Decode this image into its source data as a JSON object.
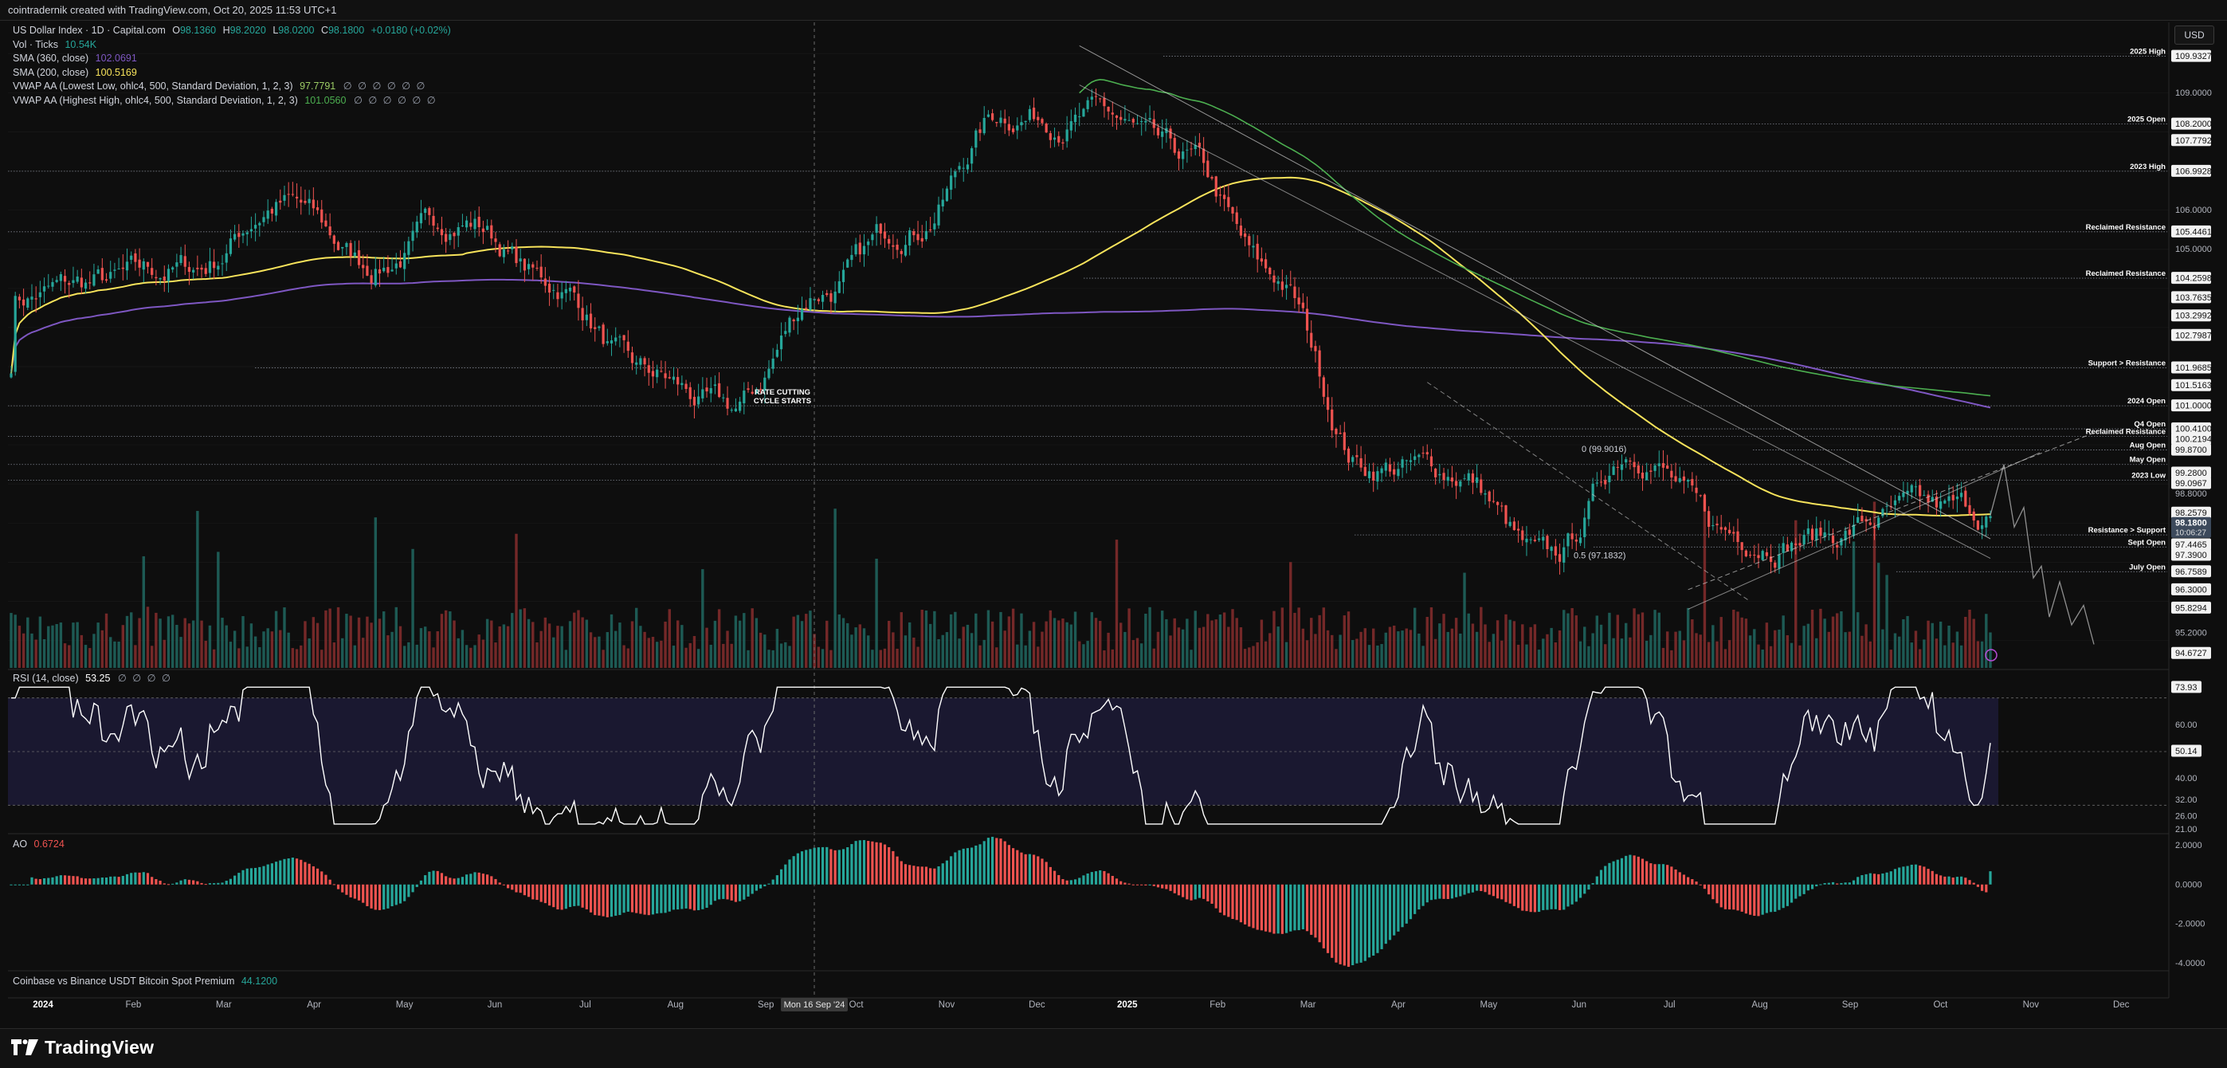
{
  "topbar": {
    "text": "cointradernik created with TradingView.com, Oct 20, 2025 11:53 UTC+1"
  },
  "legend": {
    "symbol": "US Dollar Index · 1D · Capital.com",
    "ohlc": {
      "o_label": "O",
      "o": "98.1360",
      "h_label": "H",
      "h": "98.2020",
      "l_label": "L",
      "l": "98.0200",
      "c_label": "C",
      "c": "98.1800",
      "change": "+0.0180 (+0.02%)"
    },
    "vol_label": "Vol · Ticks",
    "vol_value": "10.54K",
    "sma360_label": "SMA (360, close)",
    "sma360_value": "102.0691",
    "sma200_label": "SMA (200, close)",
    "sma200_value": "100.5169",
    "vwap_low_label": "VWAP AA (Lowest Low, ohlc4, 500, Standard Deviation, 1, 2, 3)",
    "vwap_low_value": "97.7791",
    "vwap_high_label": "VWAP AA (Highest High, ohlc4, 500, Standard Deviation, 1, 2, 3)",
    "vwap_high_value": "101.0560",
    "dots": "∅ ∅ ∅ ∅ ∅ ∅",
    "dots_short": "∅ ∅ ∅ ∅"
  },
  "currency_button": "USD",
  "rsi_pane": {
    "label": "RSI (14, close)",
    "value": "53.25"
  },
  "ao_pane": {
    "label": "AO",
    "value": "0.6724"
  },
  "premium_pane": {
    "label": "Coinbase vs Binance USDT Bitcoin Spot Premium",
    "value": "44.1200"
  },
  "crosshair_date": "Mon 16 Sep '24",
  "brand": "TradingView",
  "colors": {
    "up": "#26a69a",
    "down": "#ef5350",
    "sma360": "#7e57c2",
    "sma200": "#f7e35b",
    "vwap_low": "#4caf50",
    "rsi_line": "#ffffff",
    "background": "#0e0e0e"
  },
  "chart_data": [
    {
      "type": "candlestick",
      "title": "US Dollar Index · 1D · Capital.com",
      "x_ticks": [
        "2024",
        "Feb",
        "Mar",
        "Apr",
        "May",
        "Jun",
        "Jul",
        "Aug",
        "Sep",
        "Oct",
        "Nov",
        "Dec",
        "2025",
        "Feb",
        "Mar",
        "Apr",
        "May",
        "Jun",
        "Jul",
        "Aug",
        "Sep",
        "Oct",
        "Nov",
        "Dec"
      ],
      "y_ticks": [
        95.2,
        101.0,
        105.0,
        106.0,
        109.0
      ],
      "ylim": [
        94.3,
        110.8
      ],
      "price_labels": [
        "109.9327",
        "109.0000",
        "108.2000",
        "107.7792",
        "106.9928",
        "106.0000",
        "105.4461",
        "105.0000",
        "104.2598",
        "103.7635",
        "103.2992",
        "102.7987",
        "101.9685",
        "101.5163",
        "101.0000",
        "100.4100",
        "100.2194",
        "99.8700",
        "99.2800",
        "99.0967",
        "98.8000",
        "98.2579",
        "98.1800",
        "97.4465",
        "97.3900",
        "96.7589",
        "96.3000",
        "95.8294",
        "95.2000",
        "94.6727"
      ],
      "current_price": {
        "value": "98.1800",
        "countdown": "10:06:27"
      },
      "monthly_closes": {
        "months": [
          "Jan 24",
          "Feb 24",
          "Mar 24",
          "Apr 24",
          "May 24",
          "Jun 24",
          "Jul 24",
          "Aug 24",
          "Sep 24",
          "Oct 24",
          "Nov 24",
          "Dec 24",
          "Jan 25",
          "Feb 25",
          "Mar 25",
          "Apr 25",
          "May 25",
          "Jun 25",
          "Jul 25",
          "Aug 25",
          "Sep 25",
          "Oct 25"
        ],
        "values": [
          103.8,
          104.1,
          104.5,
          106.2,
          104.6,
          105.8,
          104.1,
          101.7,
          100.8,
          104.0,
          105.7,
          108.5,
          108.4,
          107.2,
          104.2,
          99.5,
          99.3,
          96.9,
          100.0,
          97.7,
          97.7,
          98.2
        ]
      },
      "levels": [
        {
          "label": "2025 High",
          "value": 109.9327
        },
        {
          "label": "2025 Open",
          "value": 108.2
        },
        {
          "label": "2023 High",
          "value": 106.9928
        },
        {
          "label": "Reclaimed Resistance",
          "value": 105.4461
        },
        {
          "label": "Reclaimed Resistance",
          "value": 104.2598
        },
        {
          "label": "Support > Resistance",
          "value": 101.9685
        },
        {
          "label": "2024 Open",
          "value": 101.0
        },
        {
          "label": "Q4 Open",
          "value": 100.41
        },
        {
          "label": "Reclaimed Resistance",
          "value": 100.2194
        },
        {
          "label": "Aug Open",
          "value": 99.87
        },
        {
          "label": "May Open",
          "value": 99.5
        },
        {
          "label": "2023 Low",
          "value": 99.0967
        },
        {
          "label": "Resistance > Support",
          "value": 97.7
        },
        {
          "label": "Sept Open",
          "value": 97.39
        },
        {
          "label": "July Open",
          "value": 96.7589
        }
      ],
      "annotations": [
        {
          "text": "RATE CUTTING",
          "text2": "CYCLE STARTS"
        },
        {
          "text": "0 (99.9016)"
        },
        {
          "text": "0.5 (97.1832)"
        }
      ],
      "series": [
        {
          "name": "SMA (360, close)",
          "value": 102.0691
        },
        {
          "name": "SMA (200, close)",
          "value": 100.5169
        },
        {
          "name": "VWAP AA (Lowest Low)",
          "value": 97.7791
        },
        {
          "name": "VWAP AA (Highest High)",
          "value": 101.056
        }
      ]
    },
    {
      "type": "line",
      "title": "RSI (14, close)",
      "y_ticks": [
        "73.93",
        "60.00",
        "50.14",
        "40.00",
        "32.00",
        "26.00",
        "21.00"
      ],
      "ylim": [
        20,
        80
      ],
      "current": 53.25
    },
    {
      "type": "bar",
      "title": "AO",
      "y_ticks": [
        "2.0000",
        "0.0000",
        "-2.0000",
        "-4.0000"
      ],
      "ylim": [
        -4.3,
        2.5
      ],
      "current": 0.6724
    }
  ]
}
